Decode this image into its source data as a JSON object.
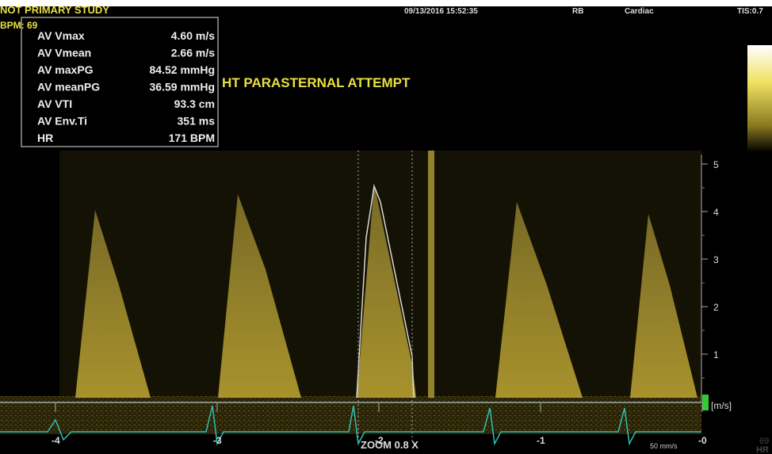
{
  "header": {
    "study": "NOT PRIMARY STUDY",
    "bpm": "BPM: 69",
    "datetime": "09/13/2016 15:52:35",
    "operator": "RB",
    "preset": "Cardiac",
    "tis": "TIS:0.7"
  },
  "measurements": [
    {
      "label": "AV Vmax",
      "value": "4.60 m/s"
    },
    {
      "label": "AV Vmean",
      "value": "2.66 m/s"
    },
    {
      "label": "AV maxPG",
      "value": "84.52 mmHg"
    },
    {
      "label": "AV meanPG",
      "value": "36.59 mmHg"
    },
    {
      "label": "AV VTI",
      "value": "93.3 cm"
    },
    {
      "label": "AV Env.Ti",
      "value": "351 ms"
    },
    {
      "label": "HR",
      "value": "171 BPM"
    }
  ],
  "overlay_text": "HT PARASTERNAL ATTEMPT",
  "velocity_scale": {
    "ticks": [
      "5",
      "4",
      "3",
      "2",
      "1"
    ],
    "unit": "[m/s]"
  },
  "time_scale": {
    "ticks": [
      "-4",
      "-3",
      "-2",
      "-1",
      "-0"
    ]
  },
  "zoom": "ZOOM 0.8 X",
  "sweep": "50 mm/s",
  "side_hr": {
    "value": "69",
    "label": "HR"
  }
}
